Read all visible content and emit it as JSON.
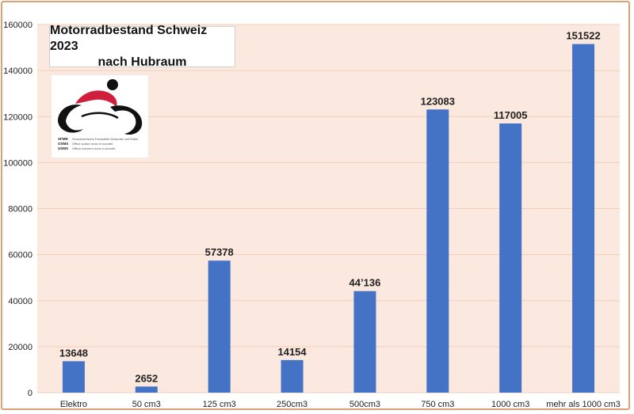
{
  "chart_data": {
    "type": "bar",
    "title": "Motorradbestand Schweiz 2023",
    "subtitle": "nach Hubraum",
    "categories": [
      "Elektro",
      "50 cm3",
      "125 cm3",
      "250cm3",
      "500cm3",
      "750 cm3",
      "1000 cm3",
      "mehr als 1000 cm3"
    ],
    "values": [
      13648,
      2652,
      57378,
      14154,
      44136,
      123083,
      117005,
      151522
    ],
    "data_labels": [
      "13648",
      "2652",
      "57378",
      "14154",
      "44’136",
      "123083",
      "117005",
      "151522"
    ],
    "ylim": [
      0,
      160000
    ],
    "yticks": [
      "0",
      "20000",
      "40000",
      "60000",
      "80000",
      "100000",
      "120000",
      "140000",
      "160000"
    ],
    "xlabel": "",
    "ylabel": "",
    "grid": true,
    "colors": {
      "bar": "#4472c4",
      "plot_background": "#fbe9df",
      "gridline": "#f2cdb8",
      "frame": "#e0a077"
    }
  },
  "logo": {
    "abbreviations": [
      "SFMR",
      "OSMS",
      "USMS"
    ],
    "lines": [
      "Schweizerische Fachstelle Motorrad und Roller",
      "Office suisse moto et scooter",
      "Ufficio svizzero moto e scooter"
    ],
    "colors": {
      "accent": "#d01f3c",
      "ink": "#111111"
    }
  }
}
